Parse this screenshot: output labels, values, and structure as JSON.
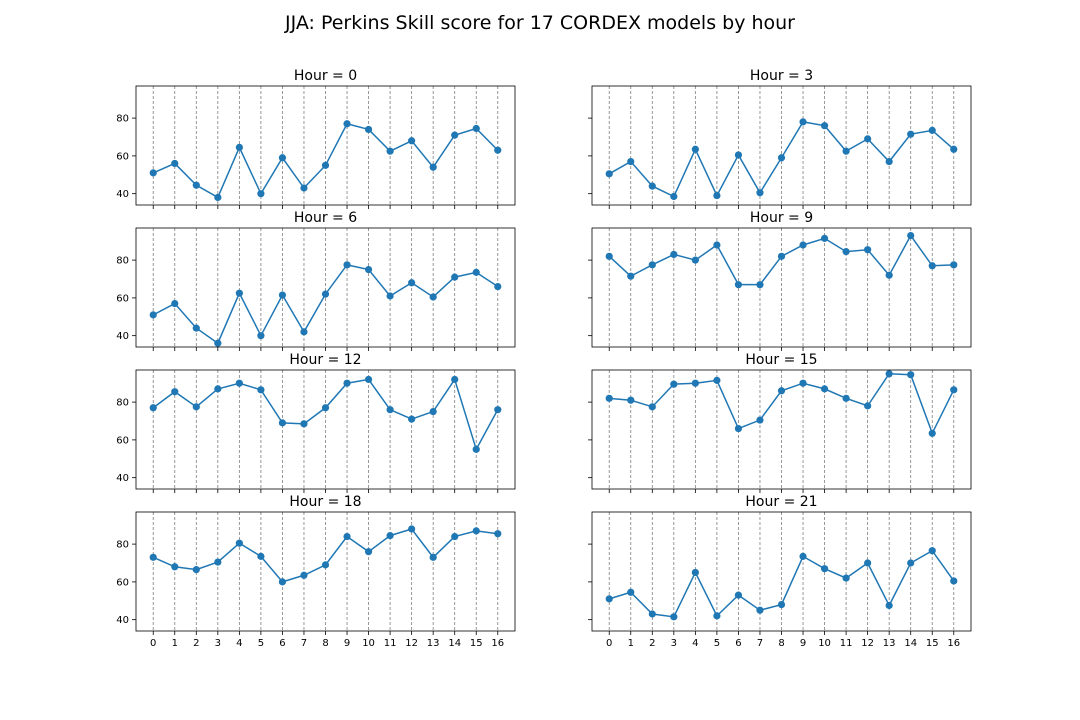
{
  "figure": {
    "title": "JJA: Perkins Skill score for 17 CORDEX models by hour"
  },
  "colors": {
    "series": "#1f77b4",
    "grid": "#7f7f7f",
    "axes": "#000000"
  },
  "chart_data": [
    {
      "type": "line",
      "title": "Hour = 0",
      "x": [
        0,
        1,
        2,
        3,
        4,
        5,
        6,
        7,
        8,
        9,
        10,
        11,
        12,
        13,
        14,
        15,
        16
      ],
      "values": [
        51,
        56,
        44.5,
        38,
        64.5,
        40,
        59,
        43,
        55,
        77,
        74,
        62.5,
        68,
        54,
        71,
        74.5,
        63
      ],
      "ylim": [
        34,
        97
      ],
      "yticks": [
        40,
        60,
        80
      ],
      "show_y_tick_labels": true,
      "show_x_tick_labels": false,
      "grid": "vertical-dashed"
    },
    {
      "type": "line",
      "title": "Hour = 3",
      "x": [
        0,
        1,
        2,
        3,
        4,
        5,
        6,
        7,
        8,
        9,
        10,
        11,
        12,
        13,
        14,
        15,
        16
      ],
      "values": [
        50.5,
        57,
        44,
        38.5,
        63.5,
        39,
        60.5,
        40.5,
        59,
        78,
        76,
        62.5,
        69,
        57,
        71.5,
        73.5,
        63.5
      ],
      "ylim": [
        34,
        97
      ],
      "yticks": [
        40,
        60,
        80
      ],
      "show_y_tick_labels": false,
      "show_x_tick_labels": false,
      "grid": "vertical-dashed"
    },
    {
      "type": "line",
      "title": "Hour = 6",
      "x": [
        0,
        1,
        2,
        3,
        4,
        5,
        6,
        7,
        8,
        9,
        10,
        11,
        12,
        13,
        14,
        15,
        16
      ],
      "values": [
        51,
        57,
        44,
        36,
        62.5,
        40,
        61.5,
        42,
        62,
        77.5,
        75,
        61,
        68,
        60.5,
        71,
        73.5,
        66
      ],
      "ylim": [
        34,
        97
      ],
      "yticks": [
        40,
        60,
        80
      ],
      "show_y_tick_labels": true,
      "show_x_tick_labels": false,
      "grid": "vertical-dashed"
    },
    {
      "type": "line",
      "title": "Hour = 9",
      "x": [
        0,
        1,
        2,
        3,
        4,
        5,
        6,
        7,
        8,
        9,
        10,
        11,
        12,
        13,
        14,
        15,
        16
      ],
      "values": [
        82,
        71.5,
        77.5,
        83,
        80,
        88,
        67,
        67,
        82,
        88,
        91.5,
        84.5,
        85.5,
        72,
        93,
        77,
        77.5
      ],
      "ylim": [
        34,
        97
      ],
      "yticks": [
        40,
        60,
        80
      ],
      "show_y_tick_labels": false,
      "show_x_tick_labels": false,
      "grid": "vertical-dashed"
    },
    {
      "type": "line",
      "title": "Hour = 12",
      "x": [
        0,
        1,
        2,
        3,
        4,
        5,
        6,
        7,
        8,
        9,
        10,
        11,
        12,
        13,
        14,
        15,
        16
      ],
      "values": [
        77,
        85.5,
        77.5,
        87,
        90,
        86.5,
        69,
        68.5,
        77,
        90,
        92,
        76,
        71,
        75,
        92,
        55,
        76
      ],
      "ylim": [
        34,
        97
      ],
      "yticks": [
        40,
        60,
        80
      ],
      "show_y_tick_labels": true,
      "show_x_tick_labels": false,
      "grid": "vertical-dashed"
    },
    {
      "type": "line",
      "title": "Hour = 15",
      "x": [
        0,
        1,
        2,
        3,
        4,
        5,
        6,
        7,
        8,
        9,
        10,
        11,
        12,
        13,
        14,
        15,
        16
      ],
      "values": [
        82,
        81,
        77.5,
        89.5,
        90,
        91.5,
        66,
        70.5,
        86,
        90,
        87,
        82,
        78,
        95,
        94.5,
        63.5,
        86.5
      ],
      "ylim": [
        34,
        97
      ],
      "yticks": [
        40,
        60,
        80
      ],
      "show_y_tick_labels": false,
      "show_x_tick_labels": false,
      "grid": "vertical-dashed"
    },
    {
      "type": "line",
      "title": "Hour = 18",
      "x": [
        0,
        1,
        2,
        3,
        4,
        5,
        6,
        7,
        8,
        9,
        10,
        11,
        12,
        13,
        14,
        15,
        16
      ],
      "values": [
        73,
        68,
        66.5,
        70.5,
        80.5,
        73.5,
        60,
        63.5,
        69,
        84,
        76,
        84.5,
        88,
        73,
        84,
        87,
        85.5
      ],
      "ylim": [
        34,
        97
      ],
      "yticks": [
        40,
        60,
        80
      ],
      "show_y_tick_labels": true,
      "show_x_tick_labels": true,
      "grid": "vertical-dashed"
    },
    {
      "type": "line",
      "title": "Hour = 21",
      "x": [
        0,
        1,
        2,
        3,
        4,
        5,
        6,
        7,
        8,
        9,
        10,
        11,
        12,
        13,
        14,
        15,
        16
      ],
      "values": [
        51,
        54.5,
        43,
        41.5,
        65,
        42,
        53,
        45,
        48,
        73.5,
        67,
        62,
        70,
        47.5,
        70,
        76.5,
        60.5
      ],
      "ylim": [
        34,
        97
      ],
      "yticks": [
        40,
        60,
        80
      ],
      "show_y_tick_labels": false,
      "show_x_tick_labels": true,
      "grid": "vertical-dashed"
    }
  ]
}
